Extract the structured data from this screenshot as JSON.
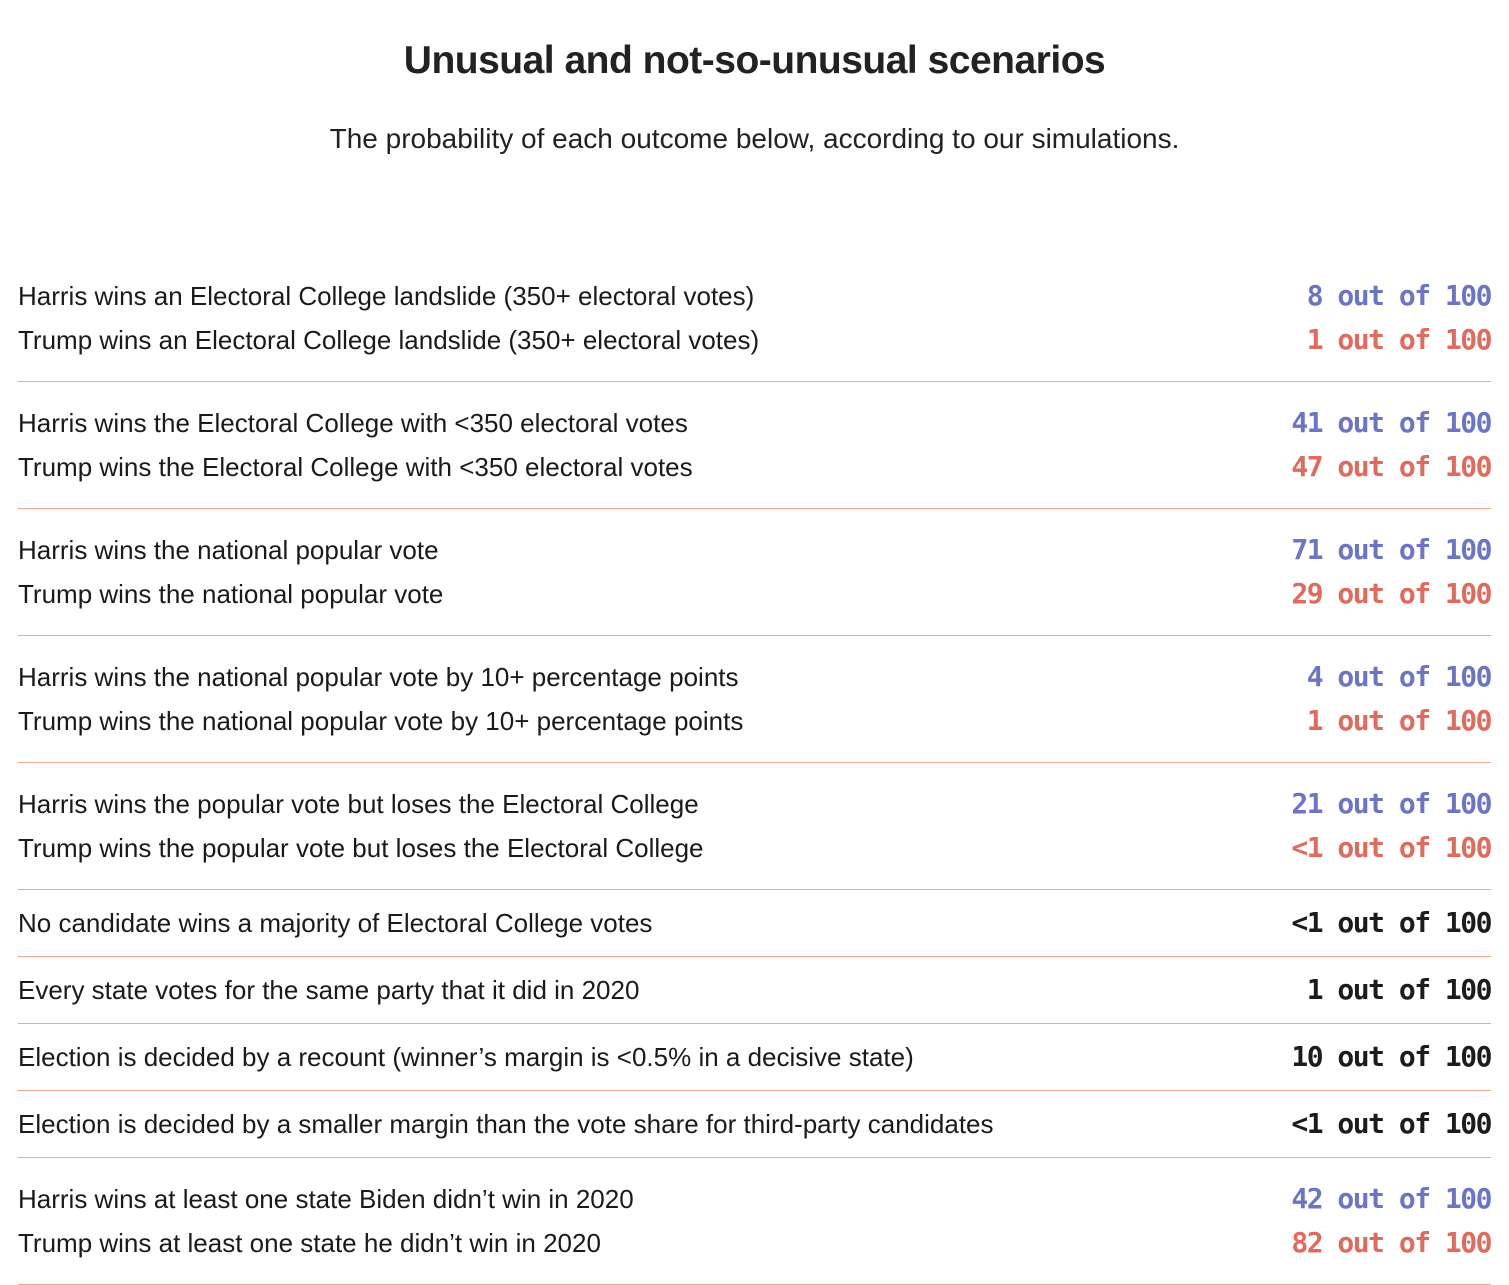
{
  "colors": {
    "harris": "#6c75c5",
    "trump": "#e06a5c",
    "neutral": "#1c1c1c",
    "divider": "#efa88f"
  },
  "chart_data": {
    "type": "table",
    "title": "Unusual and not-so-unusual scenarios",
    "subtitle": "The probability of each outcome below, according to our simulations.",
    "unit": "out of 100",
    "groups": [
      {
        "rows": [
          {
            "label": "Harris wins an Electoral College landslide (350+ electoral votes)",
            "value": "8",
            "text": "8 out of 100",
            "party": "harris"
          },
          {
            "label": "Trump wins an Electoral College landslide (350+ electoral votes)",
            "value": "1",
            "text": "1 out of 100",
            "party": "trump"
          }
        ]
      },
      {
        "rows": [
          {
            "label": "Harris wins the Electoral College with <350 electoral votes",
            "value": "41",
            "text": "41 out of 100",
            "party": "harris"
          },
          {
            "label": "Trump wins the Electoral College with <350 electoral votes",
            "value": "47",
            "text": "47 out of 100",
            "party": "trump"
          }
        ]
      },
      {
        "rows": [
          {
            "label": "Harris wins the national popular vote",
            "value": "71",
            "text": "71 out of 100",
            "party": "harris"
          },
          {
            "label": "Trump wins the national popular vote",
            "value": "29",
            "text": "29 out of 100",
            "party": "trump"
          }
        ]
      },
      {
        "rows": [
          {
            "label": "Harris wins the national popular vote by 10+ percentage points",
            "value": "4",
            "text": "4 out of 100",
            "party": "harris"
          },
          {
            "label": "Trump wins the national popular vote by 10+ percentage points",
            "value": "1",
            "text": "1 out of 100",
            "party": "trump"
          }
        ]
      },
      {
        "rows": [
          {
            "label": "Harris wins the popular vote but loses the Electoral College",
            "value": "21",
            "text": "21 out of 100",
            "party": "harris"
          },
          {
            "label": "Trump wins the popular vote but loses the Electoral College",
            "value": "<1",
            "text": "<1 out of 100",
            "party": "trump"
          }
        ]
      },
      {
        "rows": [
          {
            "label": "No candidate wins a majority of Electoral College votes",
            "value": "<1",
            "text": "<1 out of 100",
            "party": "neutral"
          }
        ]
      },
      {
        "rows": [
          {
            "label": "Every state votes for the same party that it did in 2020",
            "value": "1",
            "text": "1 out of 100",
            "party": "neutral"
          }
        ]
      },
      {
        "rows": [
          {
            "label": "Election is decided by a recount (winner’s margin is <0.5% in a decisive state)",
            "value": "10",
            "text": "10 out of 100",
            "party": "neutral"
          }
        ]
      },
      {
        "rows": [
          {
            "label": "Election is decided by a smaller margin than the vote share for third-party candidates",
            "value": "<1",
            "text": "<1 out of 100",
            "party": "neutral"
          }
        ]
      },
      {
        "rows": [
          {
            "label": "Harris wins at least one state Biden didn’t win in 2020",
            "value": "42",
            "text": "42 out of 100",
            "party": "harris"
          },
          {
            "label": "Trump wins at least one state he didn’t win in 2020",
            "value": "82",
            "text": "82 out of 100",
            "party": "trump"
          }
        ]
      }
    ]
  }
}
